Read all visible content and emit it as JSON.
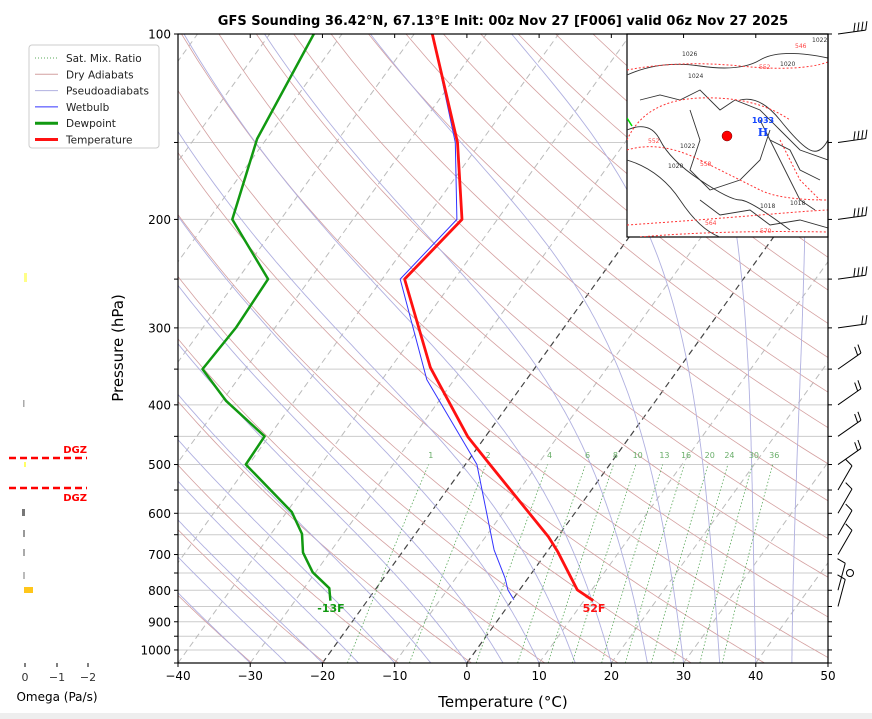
{
  "chart_data": {
    "type": "line",
    "subtype": "skew-t log-p",
    "title": "GFS Sounding 36.42°N, 67.13°E Init: 00z Nov 27 [F006] valid 06z Nov 27 2025",
    "xlabel": "Temperature (°C)",
    "ylabel": "Pressure (hPa)",
    "xlim": [
      -40,
      50
    ],
    "ylim": [
      1050,
      100
    ],
    "y_scale": "log",
    "grid": true,
    "x_ticks": [
      -40,
      -30,
      -20,
      -10,
      0,
      10,
      20,
      30,
      40,
      50
    ],
    "x_tick_labels": [
      "−40",
      "−30",
      "−20",
      "−10",
      "0",
      "10",
      "20",
      "30",
      "40",
      "50"
    ],
    "y_ticks": [
      100,
      200,
      300,
      400,
      500,
      600,
      700,
      800,
      900,
      1000
    ],
    "y_tick_labels": [
      "100",
      "200",
      "300",
      "400",
      "500",
      "600",
      "700",
      "800",
      "900",
      "1000"
    ],
    "legend": {
      "placement": "top-left",
      "items": [
        {
          "label": "Sat. Mix. Ratio",
          "color": "#5aa85a",
          "style": "dotted"
        },
        {
          "label": "Dry Adiabats",
          "color": "#d4a0a0",
          "style": "solid"
        },
        {
          "label": "Pseudoadiabats",
          "color": "#b0b0e0",
          "style": "solid"
        },
        {
          "label": "Wetbulb",
          "color": "#3333ff",
          "style": "solid"
        },
        {
          "label": "Dewpoint",
          "color": "#119911",
          "style": "thick"
        },
        {
          "label": "Temperature",
          "color": "#ff1111",
          "style": "thick"
        }
      ]
    },
    "series": [
      {
        "name": "Temperature",
        "color": "#ff1111",
        "pressure": [
          100,
          150,
          200,
          250,
          348,
          451,
          500,
          655,
          693,
          799,
          832
        ],
        "temperature": [
          -67.5,
          -53.2,
          -44.9,
          -46.9,
          -34.5,
          -22.4,
          -16.6,
          -1.3,
          1.5,
          8.0,
          11.3
        ]
      },
      {
        "name": "Wetbulb",
        "color": "#3333ff",
        "pressure": [
          100,
          150,
          200,
          250,
          364,
          500,
          688,
          764,
          799,
          829
        ],
        "temperature": [
          -67.5,
          -53.5,
          -45.6,
          -47.5,
          -33.8,
          -18.4,
          -7.5,
          -3.2,
          -1.6,
          0.2
        ]
      },
      {
        "name": "Dewpoint",
        "color": "#119911",
        "pressure": [
          100,
          148,
          200,
          250,
          300,
          350,
          394,
          450,
          500,
          597,
          648,
          695,
          748,
          794,
          832
        ],
        "temperature": [
          -83.9,
          -81.3,
          -76.7,
          -65.8,
          -65.4,
          -65.9,
          -59.5,
          -50.6,
          -50.4,
          -39.3,
          -35.7,
          -33.7,
          -30.4,
          -26.5,
          -25.1
        ]
      }
    ],
    "surface_labels": {
      "temperature": "52F",
      "dewpoint": "-13F"
    },
    "highlighted_isotherms": [
      -20,
      0
    ],
    "mixing_ratio_labels": [
      "1",
      "2",
      "4",
      "6",
      "8",
      "10",
      "13",
      "16",
      "20",
      "24",
      "30",
      "36"
    ],
    "wind_barb_levels": [
      100,
      150,
      200,
      250,
      300,
      350,
      400,
      450,
      500,
      550,
      600,
      650,
      700,
      750,
      800,
      850
    ],
    "wind_barb_calm_level": 750
  },
  "omega_panel": {
    "xlabel": "Omega (Pa/s)",
    "x_ticks": [
      "0",
      "−1",
      "−2"
    ],
    "dgz_label": "DGZ",
    "dgz_color": "#ff0000"
  },
  "inset_map": {
    "labels": [
      "1026",
      "1024",
      "1022",
      "1020",
      "1018",
      "1018",
      "1020",
      "1022",
      "552",
      "552",
      "558",
      "564",
      "570",
      "546"
    ],
    "high_value": "1033",
    "high_letter": "H",
    "marker_color": "#ff0000"
  }
}
